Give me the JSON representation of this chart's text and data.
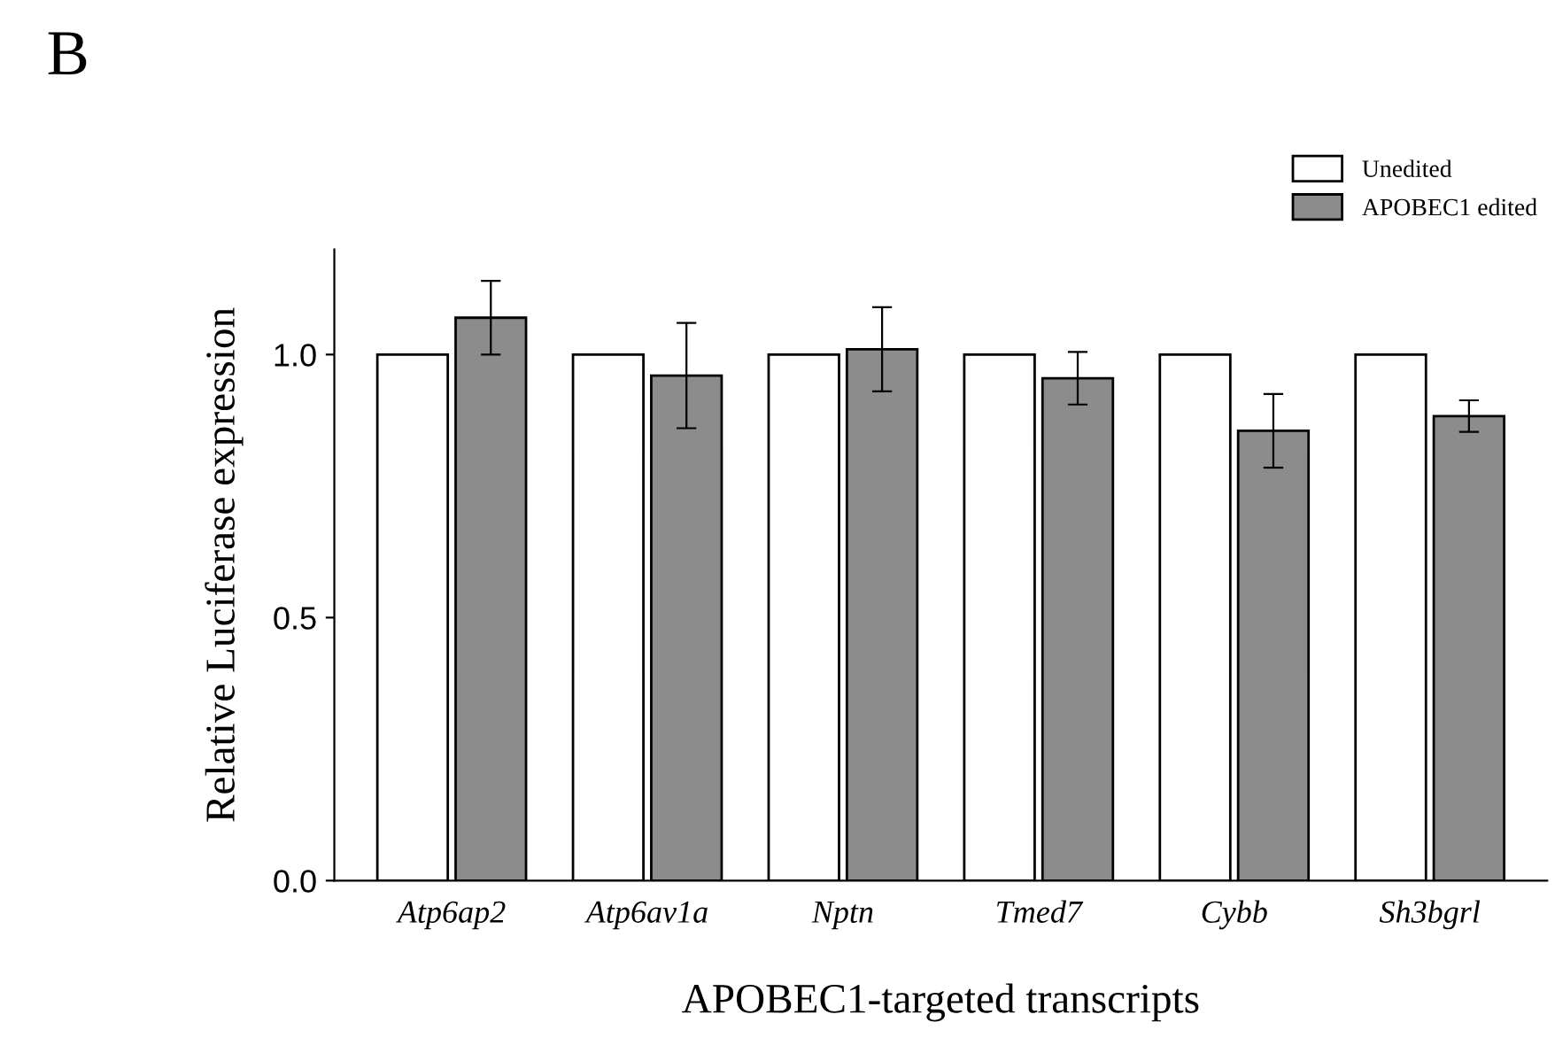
{
  "chart_data": {
    "type": "bar",
    "title": "B",
    "xlabel": "APOBEC1-targeted transcripts",
    "ylabel": "Relative Luciferase expression",
    "categories": [
      "Atp6ap2",
      "Atp6av1a",
      "Nptn",
      "Tmed7",
      "Cybb",
      "Sh3bgrl"
    ],
    "series": [
      {
        "name": "Unedited",
        "color": "#ffffff",
        "values": [
          1.0,
          1.0,
          1.0,
          1.0,
          1.0,
          1.0
        ]
      },
      {
        "name": "APOBEC1 edited",
        "color": "#8c8c8c",
        "values": [
          1.07,
          0.96,
          1.01,
          0.955,
          0.855,
          0.883
        ],
        "errors": [
          0.07,
          0.1,
          0.08,
          0.05,
          0.07,
          0.03
        ]
      }
    ],
    "ylim": [
      0,
      1.2
    ],
    "yticks": [
      {
        "value": 0,
        "label": "0.0"
      },
      {
        "value": 0.5,
        "label": "0.5"
      },
      {
        "value": 1.0,
        "label": "1.0"
      }
    ],
    "grid": false,
    "legend": "top right"
  }
}
